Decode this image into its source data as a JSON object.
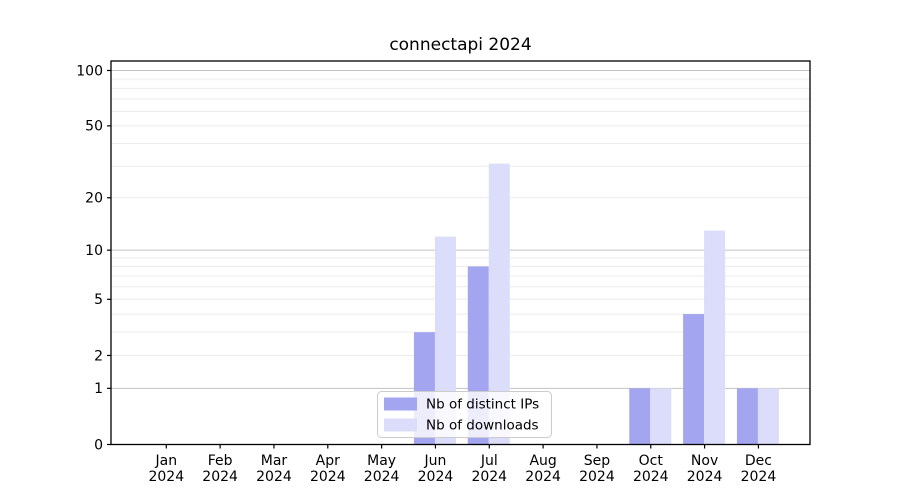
{
  "page": {
    "background": "#ffffff"
  },
  "chart_data": {
    "type": "bar",
    "title": "connectapi 2024",
    "x_months": [
      "Jan",
      "Feb",
      "Mar",
      "Apr",
      "May",
      "Jun",
      "Jul",
      "Aug",
      "Sep",
      "Oct",
      "Nov",
      "Dec"
    ],
    "x_year": "2024",
    "series": [
      {
        "name": "Nb of distinct IPs",
        "color": "#a3a5f0",
        "values": [
          0,
          0,
          0,
          0,
          0,
          3,
          8,
          0,
          0,
          1,
          4,
          1
        ]
      },
      {
        "name": "Nb of downloads",
        "color": "#dbddfa",
        "values": [
          0,
          0,
          0,
          0,
          0,
          12,
          31,
          0,
          0,
          1,
          13,
          1
        ]
      }
    ],
    "y_scale": "log1p",
    "ylim": [
      0,
      112
    ],
    "y_ticks": [
      0,
      1,
      2,
      5,
      10,
      20,
      50,
      100
    ],
    "y_grid_major": [
      1,
      10,
      100
    ],
    "y_grid_minor": [
      2,
      3,
      4,
      5,
      6,
      7,
      8,
      9,
      20,
      30,
      40,
      50,
      60,
      70,
      80,
      90
    ],
    "legend": {
      "position": "bottom-center",
      "entries": [
        "Nb of distinct IPs",
        "Nb of downloads"
      ]
    }
  },
  "colors": {
    "distinct_ips": "#a3a5f0",
    "downloads": "#dbddfa",
    "grid_major": "#c3c3c3",
    "grid_minor": "#ececec",
    "axis": "#000000",
    "text": "#000000",
    "legend_border": "#cccccc",
    "legend_bg": "rgba(255,255,255,0.8)"
  }
}
